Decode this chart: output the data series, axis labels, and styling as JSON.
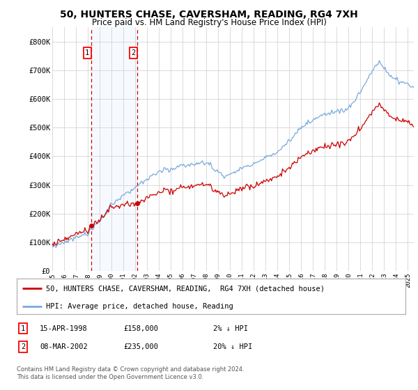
{
  "title": "50, HUNTERS CHASE, CAVERSHAM, READING, RG4 7XH",
  "subtitle": "Price paid vs. HM Land Registry's House Price Index (HPI)",
  "ylabel_ticks": [
    "£0",
    "£100K",
    "£200K",
    "£300K",
    "£400K",
    "£500K",
    "£600K",
    "£700K",
    "£800K"
  ],
  "ytick_values": [
    0,
    100000,
    200000,
    300000,
    400000,
    500000,
    600000,
    700000,
    800000
  ],
  "ylim": [
    0,
    850000
  ],
  "xlim_start": 1995.0,
  "xlim_end": 2025.5,
  "sale1_date": 1998.29,
  "sale1_price": 158000,
  "sale2_date": 2002.18,
  "sale2_price": 235000,
  "hpi_color": "#7aaadd",
  "price_color": "#cc0000",
  "vline_color": "#cc0000",
  "shade_color": "#ddeeff",
  "legend_label1": "50, HUNTERS CHASE, CAVERSHAM, READING,  RG4 7XH (detached house)",
  "legend_label2": "HPI: Average price, detached house, Reading",
  "table_row1_date": "15-APR-1998",
  "table_row1_price": "£158,000",
  "table_row1_hpi": "2% ↓ HPI",
  "table_row2_date": "08-MAR-2002",
  "table_row2_price": "£235,000",
  "table_row2_hpi": "20% ↓ HPI",
  "footnote": "Contains HM Land Registry data © Crown copyright and database right 2024.\nThis data is licensed under the Open Government Licence v3.0.",
  "bg_color": "#ffffff",
  "grid_color": "#cccccc"
}
